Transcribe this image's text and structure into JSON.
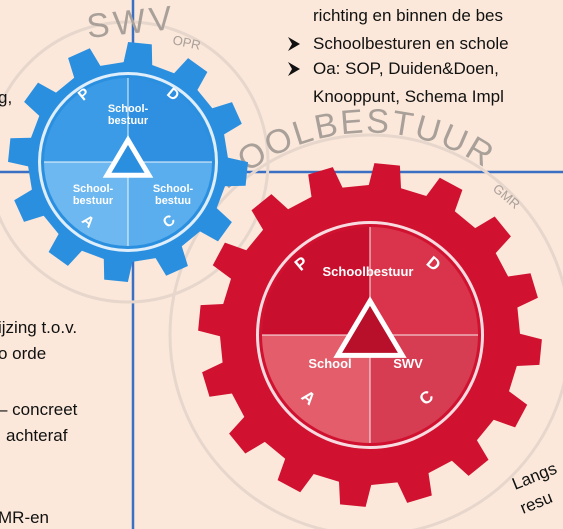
{
  "top_text": [
    "richting en binnen de bes",
    "Schoolbesturen en schole",
    "Oa: SOP, Duiden&Doen,",
    "Knooppunt, Schema Impl"
  ],
  "left_text": [
    "g,",
    "ijzing t.o.v.",
    "o orde",
    "– concreet",
    "achteraf",
    "MR-en"
  ],
  "blue_gear": {
    "label": "SWV",
    "sublabel": "OPR",
    "letters": [
      "P",
      "D",
      "A",
      "C"
    ],
    "segments": [
      [
        "School-",
        "bestuur"
      ],
      [
        "School-",
        "bestuur"
      ],
      [
        "School-",
        "bestuu"
      ]
    ]
  },
  "red_gear": {
    "label": "SCHOOLBESTUUR",
    "sublabel": "GMR",
    "letters": [
      "P",
      "D",
      "A",
      "C"
    ],
    "segments": [
      "Schoolbestuur",
      "School",
      "SWV"
    ]
  },
  "bottom_text": [
    "Langs",
    "resu"
  ]
}
